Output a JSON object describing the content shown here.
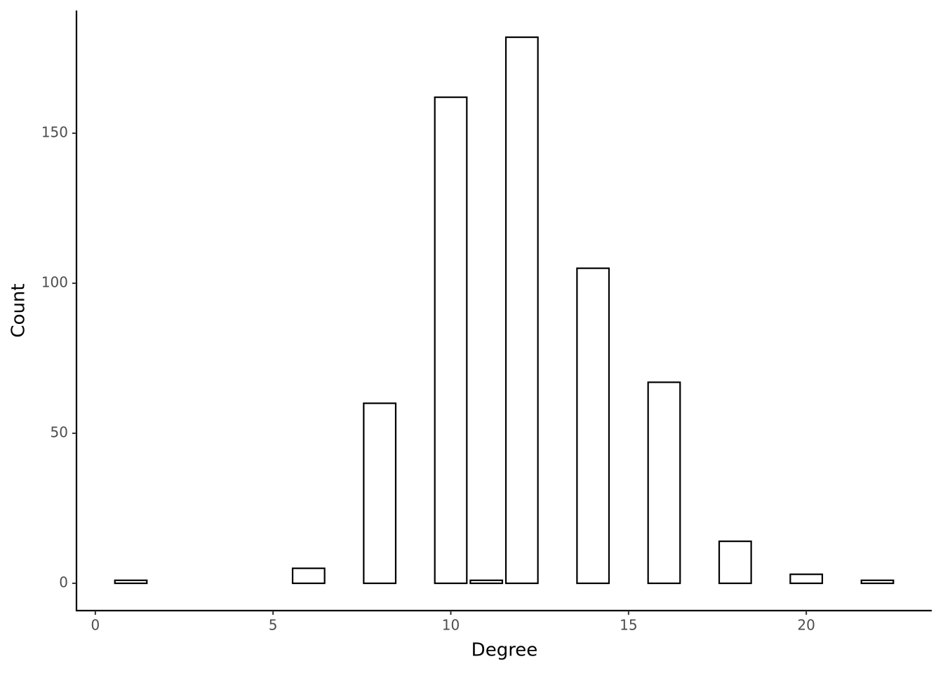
{
  "chart_data": {
    "type": "bar",
    "x": [
      1,
      6,
      8,
      10,
      11,
      12,
      14,
      16,
      18,
      20,
      22
    ],
    "values": [
      1,
      5,
      60,
      162,
      1,
      182,
      105,
      67,
      14,
      3,
      1
    ],
    "color": "#ffffff",
    "xlim": [
      -0.53,
      23.53
    ],
    "xticks": [
      0,
      5,
      10,
      15,
      20
    ],
    "ylim": [
      -9.1,
      190.9
    ],
    "yticks": [
      0,
      50,
      100,
      150
    ],
    "xlabel": "Degree",
    "ylabel": "Count",
    "grid": false
  }
}
